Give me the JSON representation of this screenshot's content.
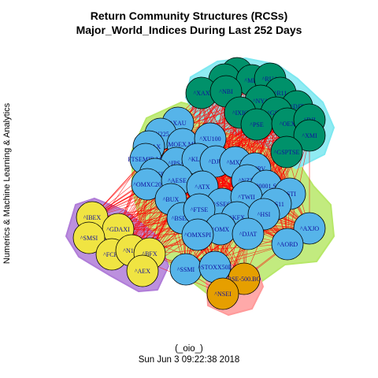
{
  "title_line1": "Return Community Structures (RCSs)",
  "title_line2": "Major_World_Indices During Last 252 Days",
  "side_label": "Numerics & Machine Learning & Analytics",
  "footer_line1": "(_oio_)",
  "footer_line2": "Sun Jun  3 09:22:38 2018",
  "colors": {
    "green_node": "#00916a",
    "blue_node": "#56b4e9",
    "yellow_node": "#f0e442",
    "orange_node": "#e69f00",
    "edge": "#ff0000",
    "hull_green": "#b7e868",
    "hull_cyan": "#7de8f0",
    "hull_purple": "#b07cd8",
    "hull_pink": "#ff9a9a"
  },
  "communities": [
    {
      "name": "green",
      "nodes": [
        "^NWX",
        "^RUT",
        "^MID",
        "^RUA",
        "^XAX",
        "^NBI",
        "^R11",
        "^NYA",
        "^DJT",
        "^IXIC",
        "^GSPC",
        "^PSE",
        "^OEX",
        "^DJI",
        "^XMI",
        "^GSPTSE"
      ]
    },
    {
      "name": "blue",
      "nodes": [
        "^XAU",
        "^N225",
        "^GSEAX",
        "MOEX.ME",
        "^XU100",
        "FTSEMIB.MI",
        "^IPSA",
        "^KLSE",
        "^DJU",
        "^MXX",
        "^BVSP",
        "^MERV",
        "^OMXC20",
        "^AESE",
        "^NZ50",
        "^ATX",
        "000001.SS",
        "^STI",
        "^BUX",
        "^SSEC",
        "^TWII",
        "^BSESN",
        "^FTSE",
        "^KS11",
        "^KFX",
        "^HSI",
        "^OMX",
        "^DJAT",
        "^OMXSPI",
        "^AXJO",
        "^AORD",
        "^SSMI",
        "^STOXX50E"
      ]
    },
    {
      "name": "yellow",
      "nodes": [
        "^IBEX",
        "^GDAXI",
        "^SMSI",
        "^FCHI",
        "^N100",
        "^BFX",
        "^AEX"
      ]
    },
    {
      "name": "orange",
      "nodes": [
        "BSE-500.BO",
        "^NSEI"
      ]
    }
  ]
}
